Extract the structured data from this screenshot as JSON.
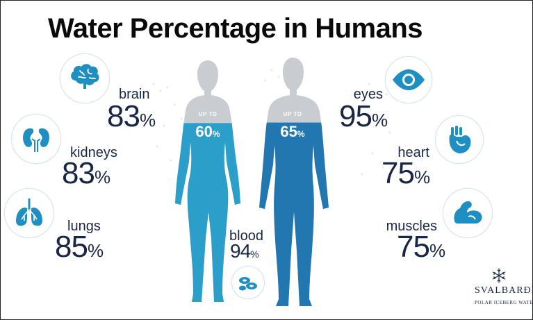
{
  "title": "Water Percentage in Humans",
  "organs": {
    "brain": {
      "label": "brain",
      "value": "83",
      "unit": "%"
    },
    "kidneys": {
      "label": "kidneys",
      "value": "83",
      "unit": "%"
    },
    "lungs": {
      "label": "lungs",
      "value": "85",
      "unit": "%"
    },
    "eyes": {
      "label": "eyes",
      "value": "95",
      "unit": "%"
    },
    "heart": {
      "label": "heart",
      "value": "75",
      "unit": "%"
    },
    "muscles": {
      "label": "muscles",
      "value": "75",
      "unit": "%"
    },
    "blood": {
      "label": "blood",
      "value": "94",
      "unit": "%"
    }
  },
  "bodies": {
    "female": {
      "upto": "UP TO",
      "value": "60",
      "unit": "%",
      "fill_fraction": 0.6
    },
    "male": {
      "upto": "UP TO",
      "value": "65",
      "unit": "%",
      "fill_fraction": 0.65
    }
  },
  "logo": {
    "name": "SVALBARÐI",
    "tagline": "POLAR ICEBERG WATER"
  },
  "colors": {
    "female_water": "#2b9ec9",
    "male_water": "#2277b0",
    "silhouette": "#c9cdd2",
    "icon": "#1f8fc1",
    "text": "#1a2744"
  },
  "icons": [
    "brain-icon",
    "kidneys-icon",
    "lungs-icon",
    "eye-icon",
    "heart-icon",
    "muscle-icon",
    "blood-cells-icon",
    "snowflake-icon"
  ]
}
